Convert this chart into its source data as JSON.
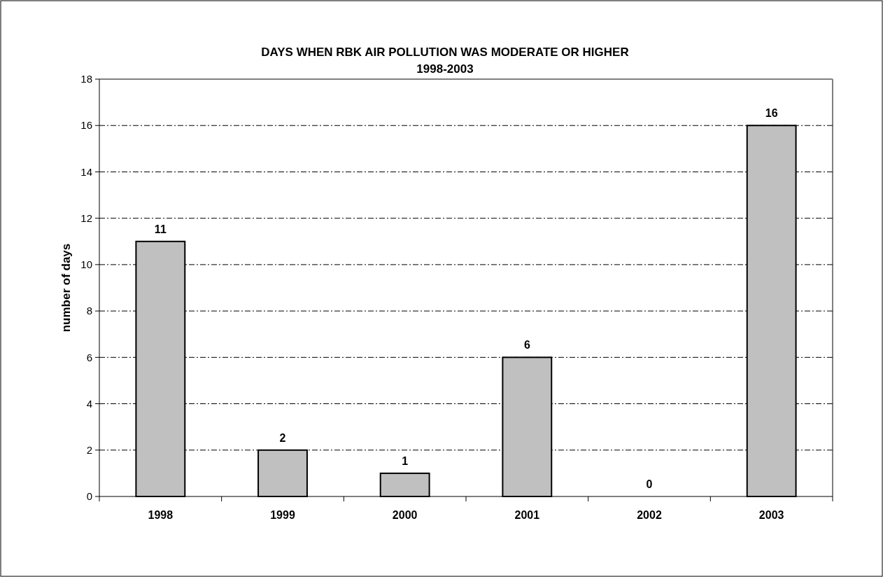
{
  "chart_data": {
    "type": "bar",
    "title": "DAYS WHEN RBK AIR POLLUTION WAS MODERATE OR HIGHER",
    "subtitle": "1998-2003",
    "ylabel": "number of days",
    "categories": [
      "1998",
      "1999",
      "2000",
      "2001",
      "2002",
      "2003"
    ],
    "values": [
      11,
      2,
      1,
      6,
      0,
      16
    ],
    "color": "#c0c0c0",
    "ylim": [
      0,
      18
    ],
    "yticks": [
      0,
      2,
      4,
      6,
      8,
      10,
      12,
      14,
      16,
      18
    ],
    "grid": "y",
    "data_labels": true
  }
}
